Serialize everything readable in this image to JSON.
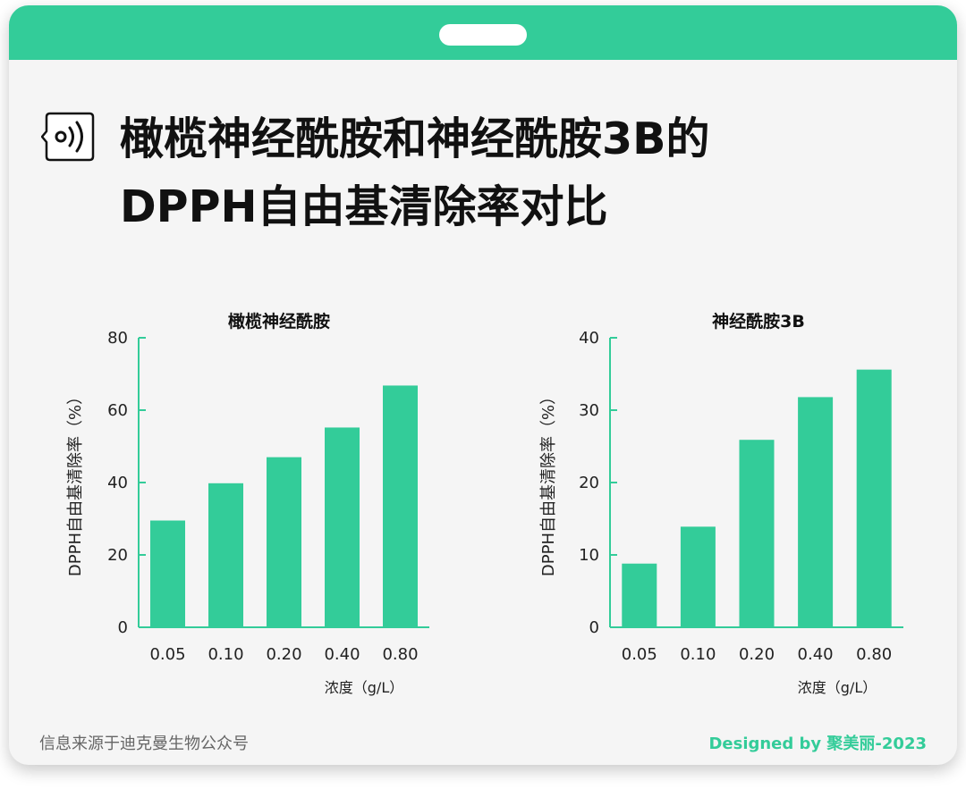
{
  "title": {
    "line1": "橄榄神经酰胺和神经酰胺3B的",
    "line2": "DPPH自由基清除率对比"
  },
  "icon": "sound-wave-bubble-icon",
  "colors": {
    "accent": "#33cc99",
    "bar": "#33cc99",
    "background": "#f5f5f5",
    "text": "#111111"
  },
  "chart_data": [
    {
      "type": "bar",
      "title": "橄榄神经酰胺",
      "categories": [
        "0.05",
        "0.10",
        "0.20",
        "0.40",
        "0.80"
      ],
      "values": [
        29.5,
        39.8,
        47,
        55.2,
        66.8
      ],
      "ylim": [
        0,
        80
      ],
      "yticks": [
        0,
        20,
        40,
        60,
        80
      ],
      "xlabel": "浓度（g/L）",
      "ylabel": "DPPH自由基清除率（%）"
    },
    {
      "type": "bar",
      "title": "神经酰胺3B",
      "categories": [
        "0.05",
        "0.10",
        "0.20",
        "0.40",
        "0.80"
      ],
      "values": [
        8.8,
        13.9,
        25.9,
        31.8,
        35.6
      ],
      "ylim": [
        0,
        40
      ],
      "yticks": [
        0,
        10,
        20,
        30,
        40
      ],
      "xlabel": "浓度（g/L）",
      "ylabel": "DPPH自由基清除率（%）"
    }
  ],
  "footer": {
    "source": "信息来源于迪克曼生物公众号",
    "credit": "Designed by 聚美丽-2023"
  },
  "watermark": "聚美丽"
}
